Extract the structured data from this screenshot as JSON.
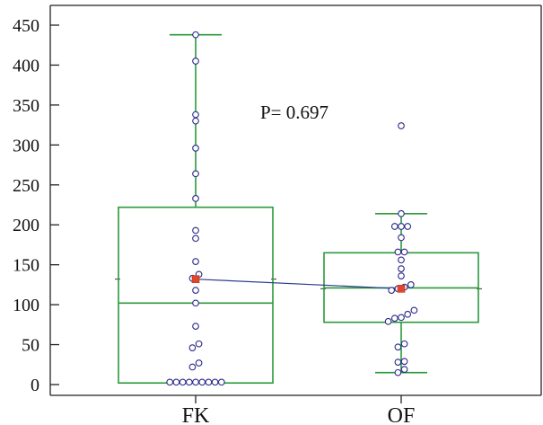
{
  "chart_data": {
    "type": "box",
    "categories": [
      "FK",
      "OF"
    ],
    "ylim": [
      0,
      450
    ],
    "yticks": [
      0,
      50,
      100,
      150,
      200,
      250,
      300,
      350,
      400,
      450
    ],
    "annotation": "P= 0.697",
    "colors": {
      "box": "#2a9a3a",
      "point_edge": "#2a2a8a",
      "mean": "#e2452b",
      "mean_line": "#2a3f8a"
    },
    "series": [
      {
        "category": "FK",
        "q1": 2,
        "median": 102,
        "q3": 222,
        "whisker_low": 2,
        "whisker_high": 438,
        "mean": 132,
        "points": [
          3,
          3,
          3,
          3,
          3,
          3,
          3,
          3,
          3,
          22,
          27,
          46,
          51,
          73,
          102,
          118,
          133,
          138,
          154,
          183,
          193,
          233,
          264,
          296,
          330,
          338,
          405,
          438
        ]
      },
      {
        "category": "OF",
        "q1": 78,
        "median": 121,
        "q3": 165,
        "whisker_low": 15,
        "whisker_high": 214,
        "mean": 120,
        "points": [
          15,
          19,
          28,
          29,
          47,
          51,
          79,
          83,
          84,
          88,
          93,
          118,
          120,
          122,
          125,
          136,
          145,
          156,
          166,
          166,
          184,
          198,
          198,
          198,
          214,
          324
        ]
      }
    ]
  }
}
